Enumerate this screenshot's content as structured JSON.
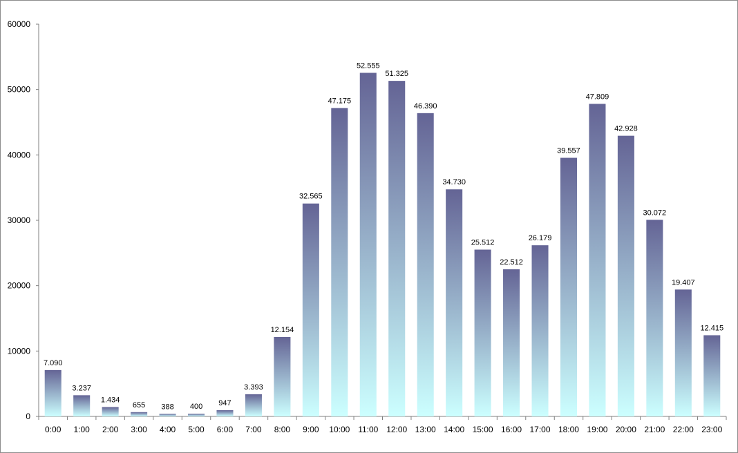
{
  "chart_data": {
    "type": "bar",
    "title": "",
    "xlabel": "",
    "ylabel": "",
    "categories": [
      "0:00",
      "1:00",
      "2:00",
      "3:00",
      "4:00",
      "5:00",
      "6:00",
      "7:00",
      "8:00",
      "9:00",
      "10:00",
      "11:00",
      "12:00",
      "13:00",
      "14:00",
      "15:00",
      "16:00",
      "17:00",
      "18:00",
      "19:00",
      "20:00",
      "21:00",
      "22:00",
      "23:00"
    ],
    "values": [
      7090,
      3237,
      1434,
      655,
      388,
      400,
      947,
      3393,
      12154,
      32565,
      47175,
      52555,
      51325,
      46390,
      34730,
      25512,
      22512,
      26179,
      39557,
      47809,
      42928,
      30072,
      19407,
      12415
    ],
    "data_labels": [
      "7.090",
      "3.237",
      "1.434",
      "655",
      "388",
      "400",
      "947",
      "3.393",
      "12.154",
      "32.565",
      "47.175",
      "52.555",
      "51.325",
      "46.390",
      "34.730",
      "25.512",
      "22.512",
      "26.179",
      "39.557",
      "47.809",
      "42.928",
      "30.072",
      "19.407",
      "12.415"
    ],
    "ylim": [
      0,
      60000
    ],
    "yticks": [
      0,
      10000,
      20000,
      30000,
      40000,
      50000,
      60000
    ],
    "ytick_labels": [
      "0",
      "10000",
      "20000",
      "30000",
      "40000",
      "50000",
      "60000"
    ],
    "grid": false,
    "legend": "none",
    "colors": {
      "bar_top": "#646495",
      "bar_bottom": "#ccffff",
      "axis": "#7f7f7f",
      "frame": "#8c8c8c"
    }
  }
}
